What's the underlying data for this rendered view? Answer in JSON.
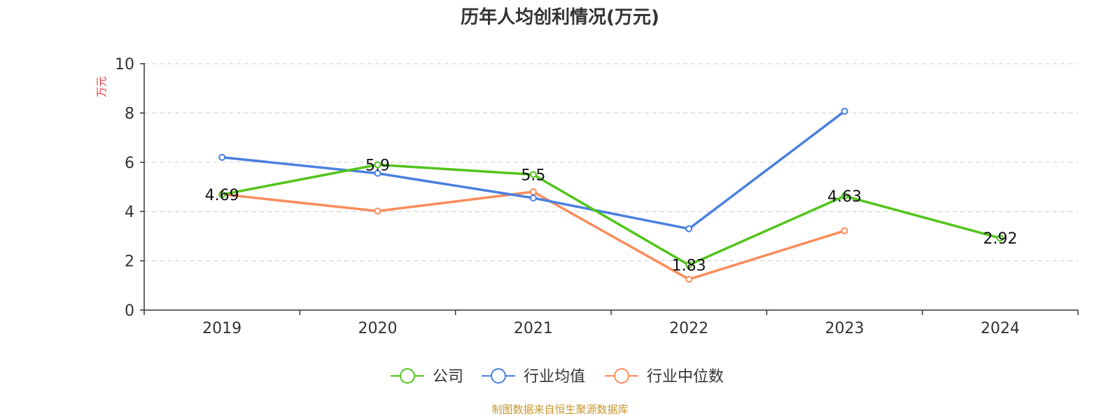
{
  "chart_data": {
    "type": "line",
    "title": "历年人均创利情况(万元)",
    "ylabel": "万元",
    "xlabel": "",
    "categories": [
      "2019",
      "2020",
      "2021",
      "2022",
      "2023",
      "2024"
    ],
    "ylim": [
      0,
      10
    ],
    "yticks": [
      0,
      2,
      4,
      6,
      8,
      10
    ],
    "grid": true,
    "legend_position": "bottom",
    "series": [
      {
        "name": "公司",
        "color": "#52c41a",
        "values": [
          4.69,
          5.9,
          5.5,
          1.83,
          4.63,
          2.92
        ],
        "show_labels": true,
        "labels": [
          "4.69",
          "5.9",
          "5.5",
          "1.83",
          "4.63",
          "2.92"
        ]
      },
      {
        "name": "行业均值",
        "color": "#4a80e0",
        "values": [
          6.2,
          5.55,
          4.55,
          3.3,
          8.07,
          null
        ],
        "show_labels": false
      },
      {
        "name": "行业中位数",
        "color": "#fa8c5a",
        "values": [
          4.7,
          4.02,
          4.8,
          1.25,
          3.22,
          null
        ],
        "show_labels": false
      }
    ]
  },
  "unit_color": "#e8333a",
  "source_text": "制图数据来自恒生聚源数据库",
  "source_color": "#c8962a"
}
